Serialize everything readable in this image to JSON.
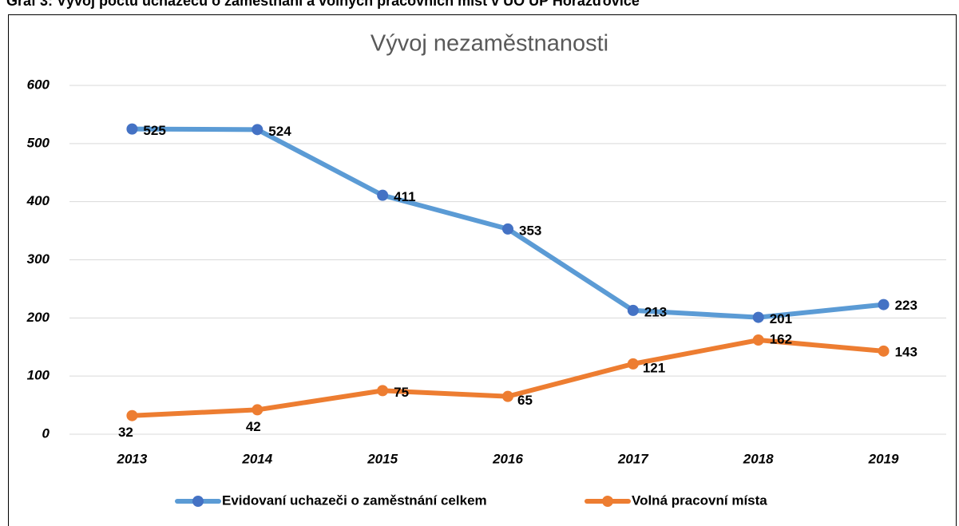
{
  "caption": "Graf 3: Vývoj počtu uchazečů o zaměstnání a volných pracovních míst v UO ÚP Horažďovice",
  "chart_data": {
    "type": "line",
    "title": "Vývoj nezaměstnanosti",
    "categories": [
      "2013",
      "2014",
      "2015",
      "2016",
      "2017",
      "2018",
      "2019"
    ],
    "series": [
      {
        "name": "Evidovaní uchazeči o zaměstnání celkem",
        "color": "#5b9bd5",
        "marker_color": "#4472c4",
        "values": [
          525,
          524,
          411,
          353,
          213,
          201,
          223
        ]
      },
      {
        "name": "Volná pracovní místa",
        "color": "#ed7d31",
        "marker_color": "#ed7d31",
        "values": [
          32,
          42,
          75,
          65,
          121,
          162,
          143
        ]
      }
    ],
    "ylim": [
      0,
      600
    ],
    "yticks": [
      0,
      100,
      200,
      300,
      400,
      500,
      600
    ],
    "grid": true,
    "legend": "bottom"
  }
}
